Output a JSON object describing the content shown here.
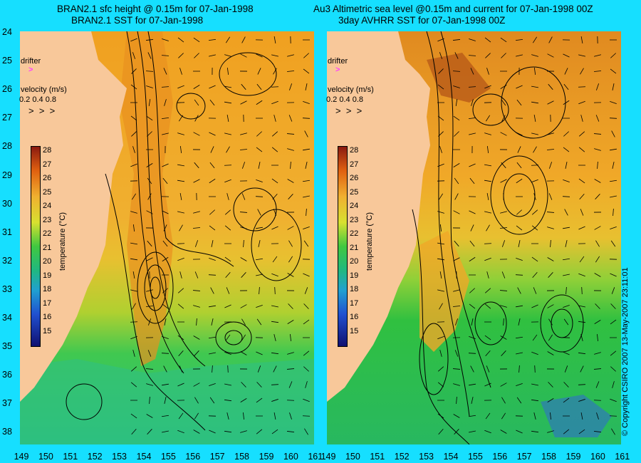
{
  "left_panel": {
    "title_line1": "BRAN2.1 sfc height @ 0.15m for 07-Jan-1998",
    "title_line2": "BRAN2.1 SST for 07-Jan-1998",
    "drifter_label": "drifter",
    "velocity_label": "velocity (m/s)",
    "velocity_scale": "0.2 0.4 0.8",
    "colorbar_label": "temperature (°C)"
  },
  "right_panel": {
    "title_line1": "Au3 Altimetric sea level  @0.15m and current for 07-Jan-1998 00Z",
    "title_line2": "3day AVHRR SST for 07-Jan-1998 00Z",
    "drifter_label": "drifter",
    "velocity_label": "velocity (m/s)",
    "velocity_scale": "0.2 0.4 0.8",
    "colorbar_label": "temperature (°C)"
  },
  "axes": {
    "lat_labels": [
      "24",
      "25",
      "26",
      "27",
      "28",
      "29",
      "30",
      "31",
      "32",
      "33",
      "34",
      "35",
      "36",
      "37",
      "38"
    ],
    "lon_labels": [
      "149",
      "150",
      "151",
      "152",
      "153",
      "154",
      "155",
      "156",
      "157",
      "158",
      "159",
      "160",
      "161"
    ],
    "colorbar_ticks": [
      "28",
      "27",
      "26",
      "25",
      "24",
      "23",
      "22",
      "21",
      "20",
      "19",
      "18",
      "17",
      "16",
      "15"
    ]
  },
  "copyright": "© Copyright CSIRO 2007   13-May-2007 23:11:01",
  "colors": {
    "background": "#16dfff",
    "land": "#f8c89a",
    "warm": "#f0a020",
    "mid": "#d8c838",
    "cool": "#28c050",
    "cold": "#20b898",
    "drifter": "#ff40ff"
  }
}
